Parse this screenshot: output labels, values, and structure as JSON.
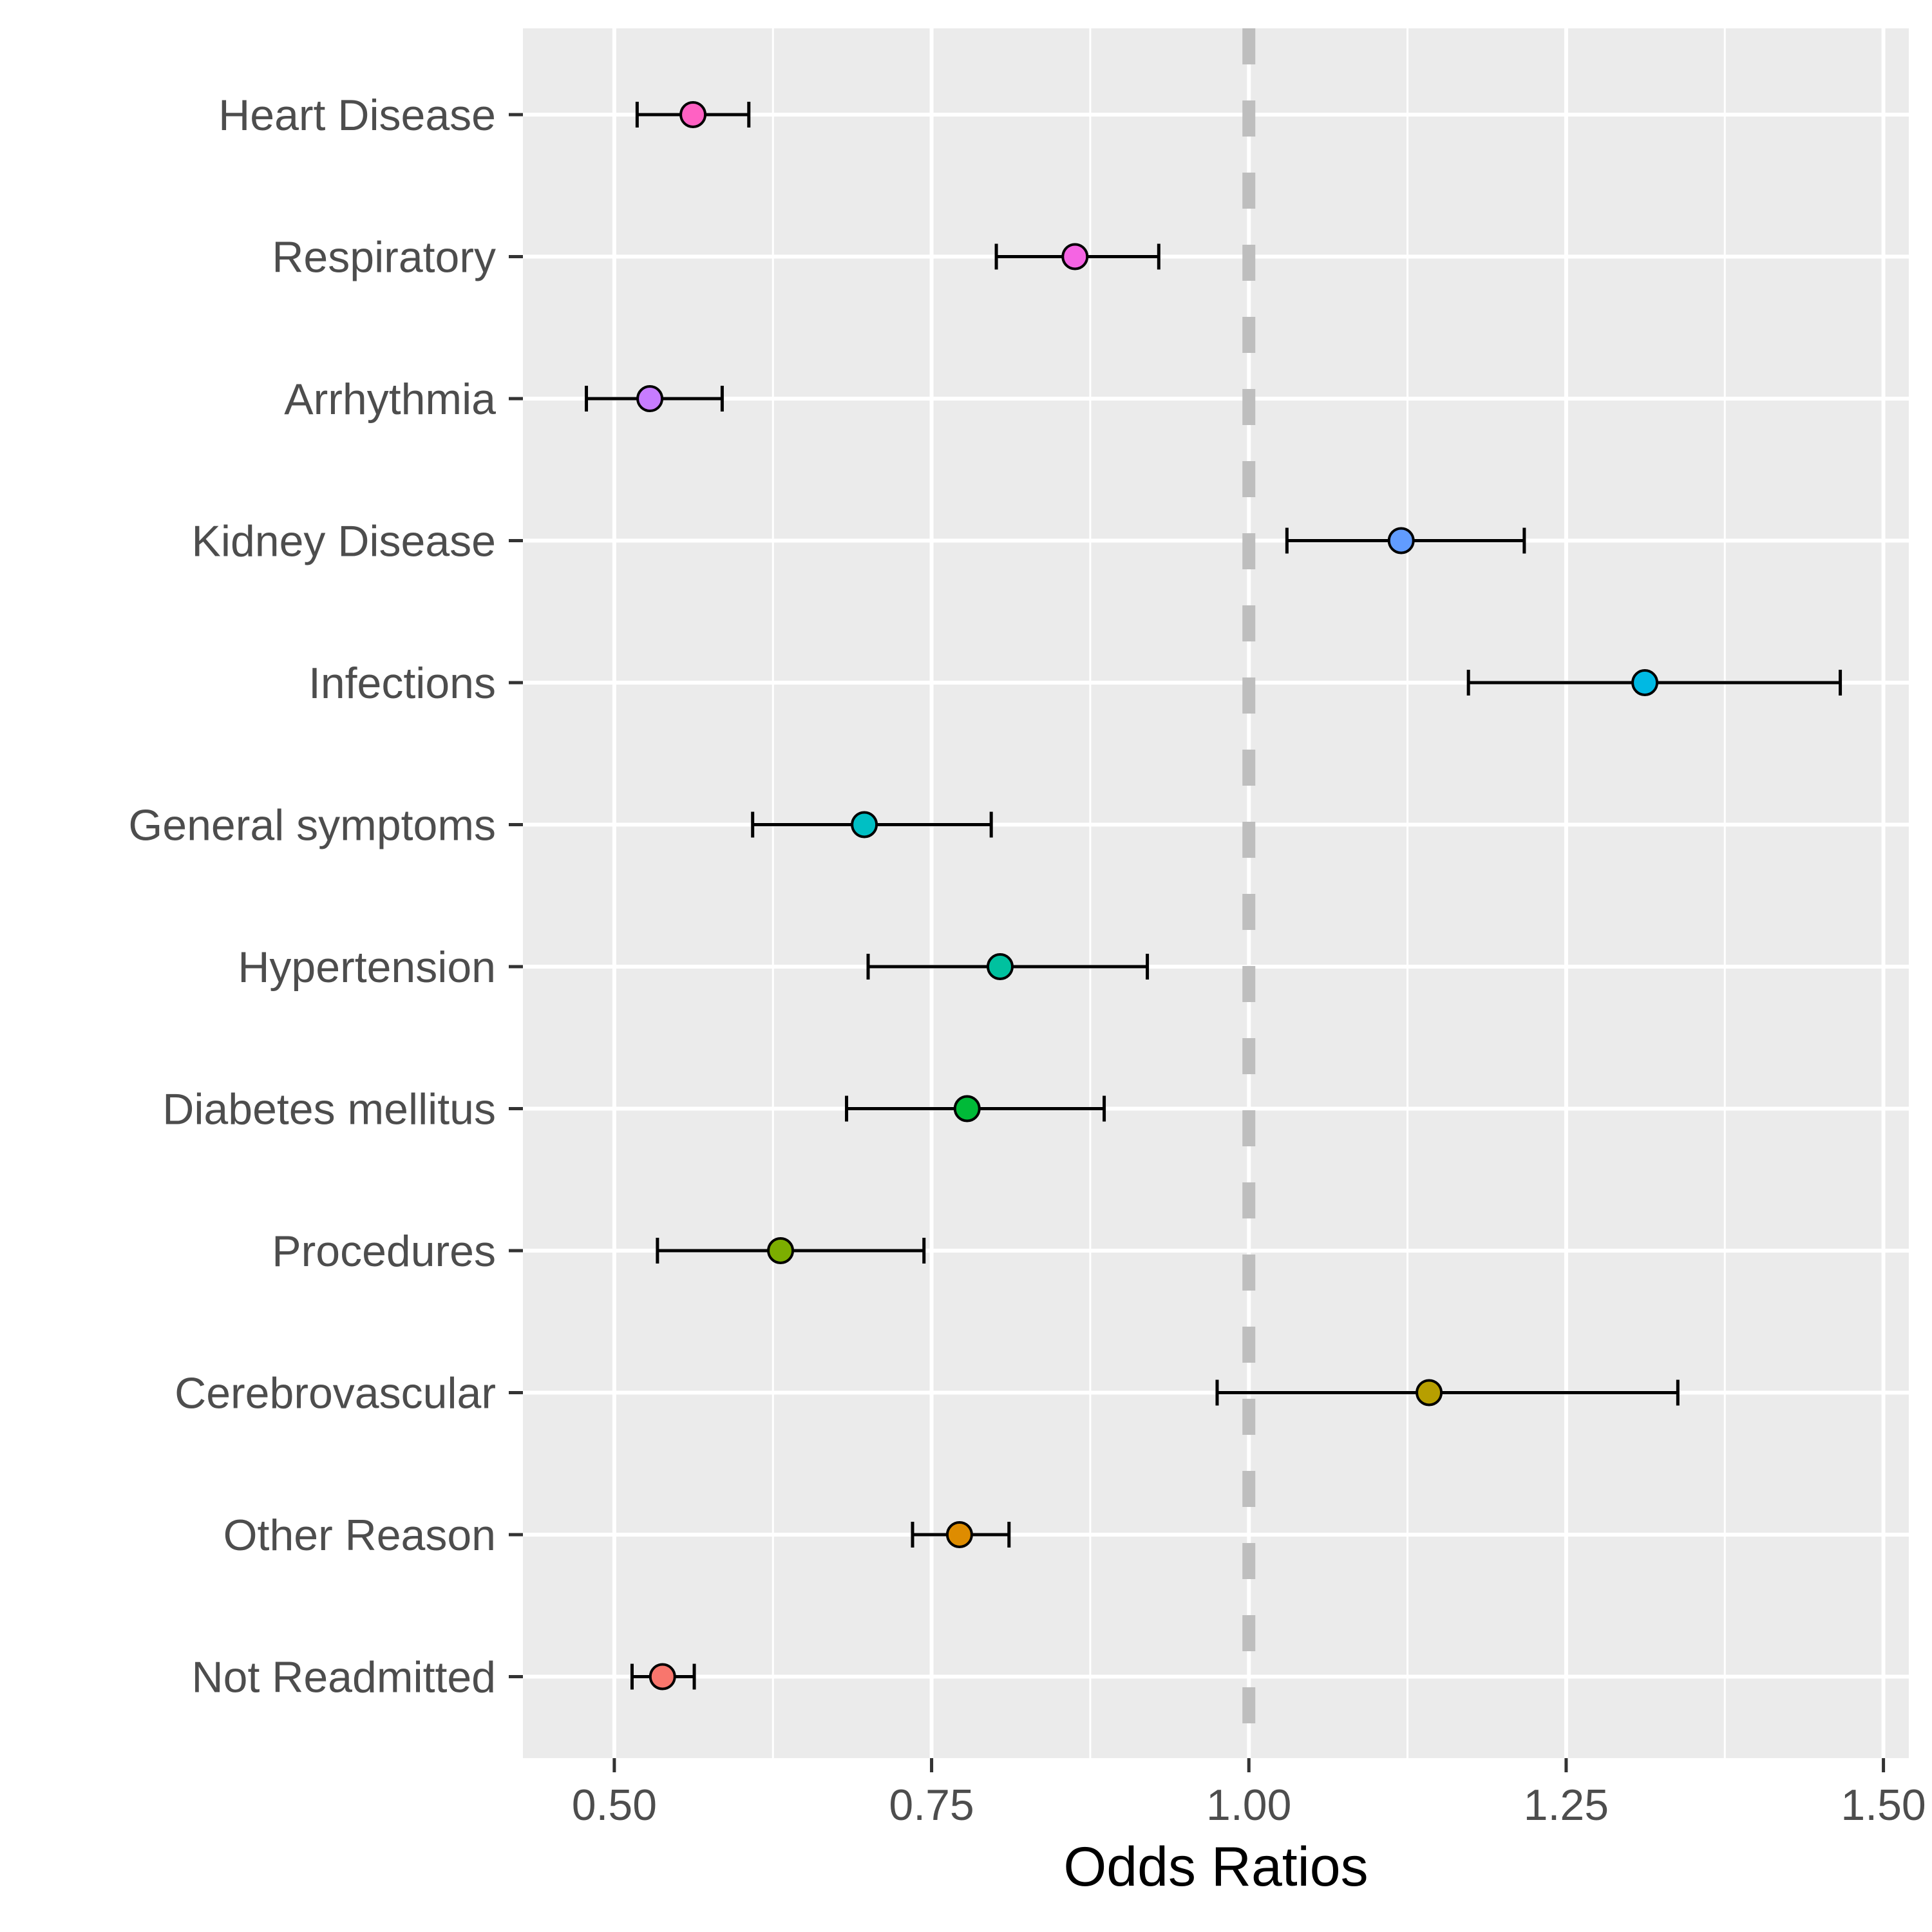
{
  "chart_data": {
    "type": "scatter",
    "xlabel": "Odds Ratios",
    "ylabel": "",
    "title": "",
    "xlim": [
      0.428,
      1.52
    ],
    "xticks": [
      0.5,
      0.75,
      1.0,
      1.25,
      1.5
    ],
    "xtick_labels": [
      "0.50",
      "0.75",
      "1.00",
      "1.25",
      "1.50"
    ],
    "reference_line": 1.0,
    "grid": true,
    "legend": "none",
    "categories": [
      "Heart Disease",
      "Respiratory",
      "Arrhythmia",
      "Kidney Disease",
      "Infections",
      "General symptoms",
      "Hypertension",
      "Diabetes mellitus",
      "Procedures",
      "Cerebrovascular",
      "Other Reason",
      "Not Readmitted"
    ],
    "points": [
      {
        "label": "Heart Disease",
        "estimate": 0.562,
        "lower": 0.518,
        "upper": 0.606,
        "color": "#FF61C3"
      },
      {
        "label": "Respiratory",
        "estimate": 0.863,
        "lower": 0.801,
        "upper": 0.929,
        "color": "#F564E3"
      },
      {
        "label": "Arrhythmia",
        "estimate": 0.528,
        "lower": 0.478,
        "upper": 0.585,
        "color": "#C77CFF"
      },
      {
        "label": "Kidney Disease",
        "estimate": 1.12,
        "lower": 1.03,
        "upper": 1.217,
        "color": "#619CFF"
      },
      {
        "label": "Infections",
        "estimate": 1.312,
        "lower": 1.173,
        "upper": 1.466,
        "color": "#00B9E3"
      },
      {
        "label": "General symptoms",
        "estimate": 0.697,
        "lower": 0.609,
        "upper": 0.797,
        "color": "#00BFC4"
      },
      {
        "label": "Hypertension",
        "estimate": 0.804,
        "lower": 0.7,
        "upper": 0.92,
        "color": "#00C19F"
      },
      {
        "label": "Diabetes mellitus",
        "estimate": 0.778,
        "lower": 0.683,
        "upper": 0.886,
        "color": "#00BA38"
      },
      {
        "label": "Procedures",
        "estimate": 0.631,
        "lower": 0.534,
        "upper": 0.744,
        "color": "#7CAE00"
      },
      {
        "label": "Cerebrovascular",
        "estimate": 1.142,
        "lower": 0.975,
        "upper": 1.338,
        "color": "#B79F00"
      },
      {
        "label": "Other Reason",
        "estimate": 0.772,
        "lower": 0.735,
        "upper": 0.811,
        "color": "#DE8C00"
      },
      {
        "label": "Not Readmitted",
        "estimate": 0.538,
        "lower": 0.514,
        "upper": 0.563,
        "color": "#F8766D"
      }
    ],
    "colors": {
      "panel_background": "#EBEBEB",
      "grid_major": "#FFFFFF",
      "reference_line": "#BEBEBE",
      "error_bar": "#000000",
      "point_outline": "#000000",
      "tick_text": "#4D4D4D"
    }
  }
}
